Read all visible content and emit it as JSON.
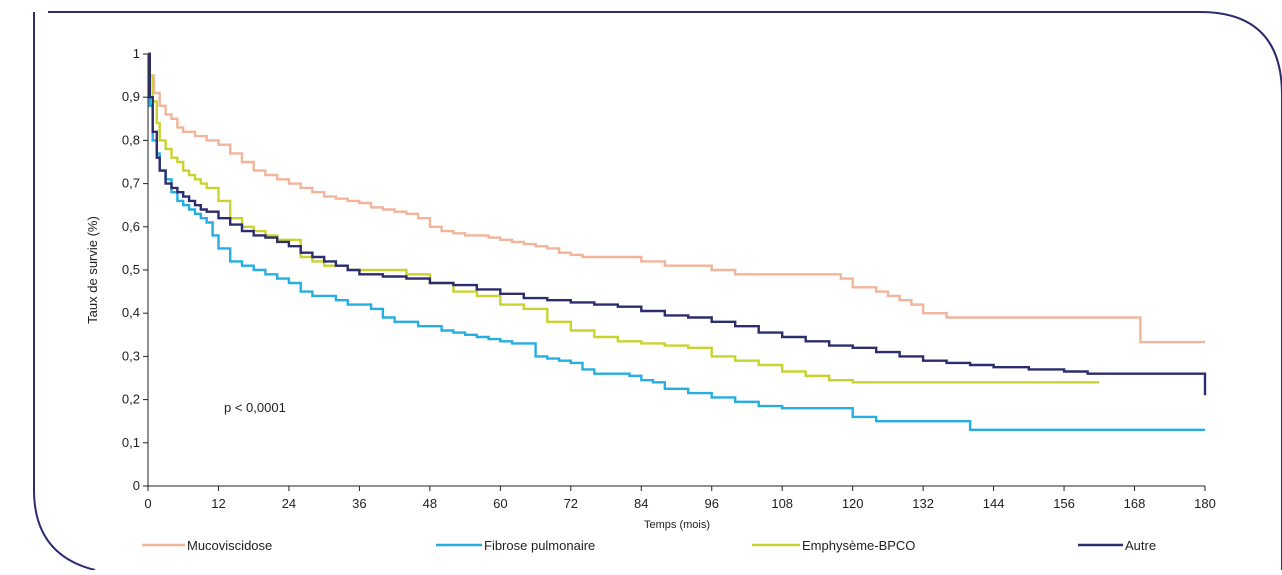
{
  "chart_data": {
    "type": "line",
    "step": true,
    "title": "",
    "xlabel": "Temps (mois)",
    "ylabel": "Taux de survie (%)",
    "xlim": [
      0,
      180
    ],
    "ylim": [
      0,
      1
    ],
    "xticks": [
      0,
      12,
      24,
      36,
      48,
      60,
      72,
      84,
      96,
      108,
      120,
      132,
      144,
      156,
      168,
      180
    ],
    "xtick_labels": [
      "0",
      "12",
      "24",
      "36",
      "48",
      "60",
      "72",
      "84",
      "96",
      "108",
      "120",
      "132",
      "144",
      "156",
      "168",
      "180"
    ],
    "yticks": [
      0,
      0.1,
      0.2,
      0.3,
      0.4,
      0.5,
      0.6,
      0.7,
      0.8,
      0.9,
      1
    ],
    "ytick_labels": [
      "0",
      "0,1",
      "0,2",
      "0,3",
      "0,4",
      "0,5",
      "0,6",
      "0,7",
      "0,8",
      "0,9",
      "1"
    ],
    "grid": false,
    "legend_position": "bottom",
    "annotation": "p < 0,0001",
    "series": [
      {
        "name": "Mucoviscidose",
        "color": "#f2b49a",
        "x": [
          0,
          0.3,
          1,
          2,
          3,
          4,
          5,
          6,
          8,
          10,
          12,
          14,
          16,
          18,
          20,
          22,
          24,
          26,
          28,
          30,
          32,
          34,
          36,
          38,
          40,
          42,
          44,
          46,
          48,
          50,
          52,
          54,
          56,
          58,
          60,
          62,
          64,
          66,
          68,
          70,
          72,
          74,
          76,
          78,
          80,
          84,
          88,
          92,
          96,
          100,
          104,
          108,
          114,
          117,
          118,
          120,
          124,
          126,
          128,
          130,
          132,
          136,
          140,
          144,
          150,
          156,
          162,
          168,
          169,
          175,
          180
        ],
        "y": [
          1,
          0.95,
          0.91,
          0.88,
          0.86,
          0.85,
          0.83,
          0.82,
          0.81,
          0.8,
          0.79,
          0.77,
          0.75,
          0.73,
          0.72,
          0.71,
          0.7,
          0.69,
          0.68,
          0.67,
          0.665,
          0.66,
          0.655,
          0.645,
          0.64,
          0.635,
          0.63,
          0.62,
          0.6,
          0.59,
          0.585,
          0.58,
          0.58,
          0.575,
          0.57,
          0.565,
          0.56,
          0.555,
          0.55,
          0.54,
          0.535,
          0.53,
          0.53,
          0.53,
          0.53,
          0.52,
          0.51,
          0.51,
          0.5,
          0.49,
          0.49,
          0.49,
          0.49,
          0.49,
          0.48,
          0.46,
          0.45,
          0.44,
          0.43,
          0.42,
          0.4,
          0.39,
          0.39,
          0.39,
          0.39,
          0.39,
          0.39,
          0.39,
          0.333,
          0.333,
          0.333
        ]
      },
      {
        "name": "Fibrose pulmonaire",
        "color": "#26aee1",
        "x": [
          0,
          0.3,
          0.8,
          1.5,
          2,
          3,
          4,
          5,
          6,
          7,
          8,
          9,
          10,
          11,
          12,
          14,
          16,
          18,
          20,
          22,
          24,
          26,
          28,
          30,
          32,
          34,
          36,
          38,
          40,
          42,
          44,
          46,
          48,
          50,
          52,
          54,
          56,
          58,
          60,
          62,
          64,
          66,
          68,
          70,
          72,
          74,
          76,
          78,
          80,
          82,
          84,
          86,
          88,
          92,
          96,
          100,
          104,
          108,
          112,
          118,
          120,
          124,
          132,
          138,
          140,
          144,
          156,
          168,
          180
        ],
        "y": [
          1,
          0.88,
          0.8,
          0.77,
          0.73,
          0.71,
          0.68,
          0.66,
          0.65,
          0.64,
          0.63,
          0.62,
          0.61,
          0.58,
          0.55,
          0.52,
          0.51,
          0.5,
          0.49,
          0.48,
          0.47,
          0.45,
          0.44,
          0.44,
          0.43,
          0.42,
          0.42,
          0.41,
          0.39,
          0.38,
          0.38,
          0.37,
          0.37,
          0.36,
          0.355,
          0.35,
          0.345,
          0.34,
          0.335,
          0.33,
          0.33,
          0.3,
          0.295,
          0.29,
          0.285,
          0.27,
          0.26,
          0.26,
          0.26,
          0.255,
          0.245,
          0.24,
          0.225,
          0.215,
          0.205,
          0.195,
          0.185,
          0.18,
          0.18,
          0.18,
          0.16,
          0.15,
          0.15,
          0.15,
          0.13,
          0.13,
          0.13,
          0.13,
          0.13
        ]
      },
      {
        "name": "Emphysème-BPCO",
        "color": "#c9d330",
        "x": [
          0,
          0.3,
          0.8,
          1.5,
          2,
          3,
          4,
          5,
          6,
          7,
          8,
          9,
          10,
          12,
          14,
          16,
          18,
          20,
          22,
          24,
          26,
          28,
          30,
          32,
          34,
          36,
          40,
          44,
          48,
          52,
          56,
          60,
          64,
          68,
          72,
          76,
          80,
          84,
          88,
          92,
          96,
          100,
          104,
          108,
          112,
          116,
          120,
          130,
          140,
          150,
          162
        ],
        "y": [
          1,
          0.95,
          0.89,
          0.84,
          0.8,
          0.78,
          0.76,
          0.75,
          0.73,
          0.72,
          0.71,
          0.7,
          0.69,
          0.66,
          0.62,
          0.6,
          0.59,
          0.58,
          0.57,
          0.57,
          0.53,
          0.52,
          0.51,
          0.51,
          0.5,
          0.5,
          0.5,
          0.49,
          0.47,
          0.45,
          0.44,
          0.42,
          0.41,
          0.38,
          0.36,
          0.345,
          0.335,
          0.33,
          0.325,
          0.32,
          0.3,
          0.29,
          0.28,
          0.265,
          0.255,
          0.245,
          0.24,
          0.24,
          0.24,
          0.24,
          0.24
        ]
      },
      {
        "name": "Autre",
        "color": "#2b2d6e",
        "x": [
          0,
          0.3,
          0.8,
          1.5,
          2,
          3,
          4,
          5,
          6,
          7,
          8,
          9,
          10,
          12,
          14,
          16,
          18,
          20,
          22,
          24,
          26,
          28,
          30,
          32,
          34,
          36,
          40,
          44,
          48,
          52,
          56,
          60,
          64,
          68,
          72,
          76,
          80,
          84,
          88,
          92,
          96,
          100,
          104,
          108,
          112,
          116,
          120,
          124,
          128,
          132,
          136,
          140,
          144,
          150,
          156,
          160,
          170,
          179.5,
          180
        ],
        "y": [
          1,
          0.9,
          0.82,
          0.76,
          0.73,
          0.7,
          0.69,
          0.68,
          0.67,
          0.66,
          0.65,
          0.64,
          0.635,
          0.62,
          0.605,
          0.59,
          0.58,
          0.575,
          0.565,
          0.555,
          0.54,
          0.53,
          0.52,
          0.51,
          0.5,
          0.49,
          0.485,
          0.48,
          0.47,
          0.465,
          0.455,
          0.445,
          0.435,
          0.43,
          0.425,
          0.42,
          0.415,
          0.405,
          0.395,
          0.39,
          0.38,
          0.37,
          0.355,
          0.345,
          0.335,
          0.325,
          0.32,
          0.31,
          0.3,
          0.29,
          0.285,
          0.28,
          0.275,
          0.27,
          0.265,
          0.26,
          0.26,
          0.26,
          0.21
        ]
      }
    ]
  }
}
